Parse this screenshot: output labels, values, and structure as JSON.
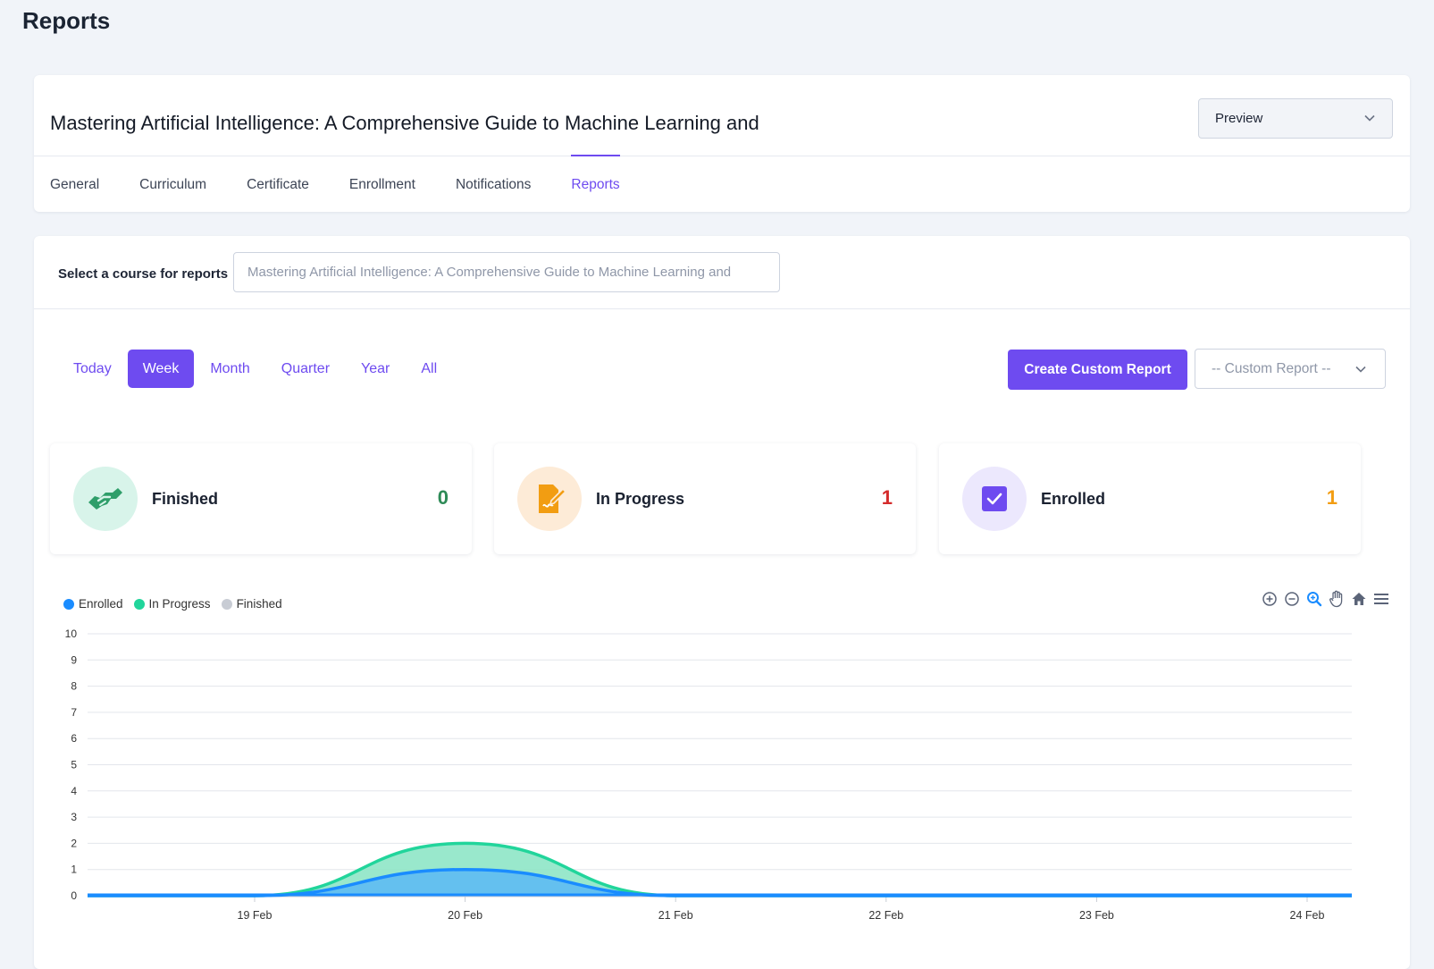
{
  "page": {
    "title": "Reports"
  },
  "header": {
    "course_title": "Mastering Artificial Intelligence: A Comprehensive Guide to Machine Learning and",
    "preview_label": "Preview",
    "tabs": [
      "General",
      "Curriculum",
      "Certificate",
      "Enrollment",
      "Notifications",
      "Reports"
    ],
    "active_tab": "Reports"
  },
  "reports": {
    "select_label": "Select a course for reports",
    "course_input_value": "Mastering Artificial Intelligence: A Comprehensive Guide to Machine Learning and",
    "range_tabs": [
      "Today",
      "Week",
      "Month",
      "Quarter",
      "Year",
      "All"
    ],
    "active_range": "Week",
    "create_button": "Create Custom Report",
    "custom_report_placeholder": "-- Custom Report --",
    "stats": [
      {
        "label": "Finished",
        "value": "0",
        "color": "#2e8b57",
        "icon": "handshake-icon"
      },
      {
        "label": "In Progress",
        "value": "1",
        "color": "#d42b2b",
        "icon": "document-edit-icon"
      },
      {
        "label": "Enrolled",
        "value": "1",
        "color": "#f29d12",
        "icon": "checkbox-icon"
      }
    ],
    "toolbar": [
      "zoom-in-icon",
      "zoom-out-icon",
      "magnifier-icon",
      "pan-hand-icon",
      "home-icon",
      "menu-icon"
    ]
  },
  "colors": {
    "accent": "#6e4bf0",
    "enrolled": "#1a8cff",
    "in_progress": "#21d59b",
    "finished": "#c8ccd4"
  },
  "chart_data": {
    "type": "area",
    "title": "",
    "xlabel": "",
    "ylabel": "",
    "x": [
      "19 Feb",
      "20 Feb",
      "21 Feb",
      "22 Feb",
      "23 Feb",
      "24 Feb"
    ],
    "ylim": [
      0,
      10
    ],
    "yticks": [
      0,
      1,
      2,
      3,
      4,
      5,
      6,
      7,
      8,
      9,
      10
    ],
    "stacked": true,
    "legend_position": "top-left",
    "grid": true,
    "series": [
      {
        "name": "Enrolled",
        "color": "#1a8cff",
        "values": [
          0,
          1,
          0,
          0,
          0,
          0
        ]
      },
      {
        "name": "In Progress",
        "color": "#21d59b",
        "values": [
          0,
          1,
          0,
          0,
          0,
          0
        ]
      },
      {
        "name": "Finished",
        "color": "#c8ccd4",
        "values": [
          0,
          0,
          0,
          0,
          0,
          0
        ]
      }
    ]
  }
}
